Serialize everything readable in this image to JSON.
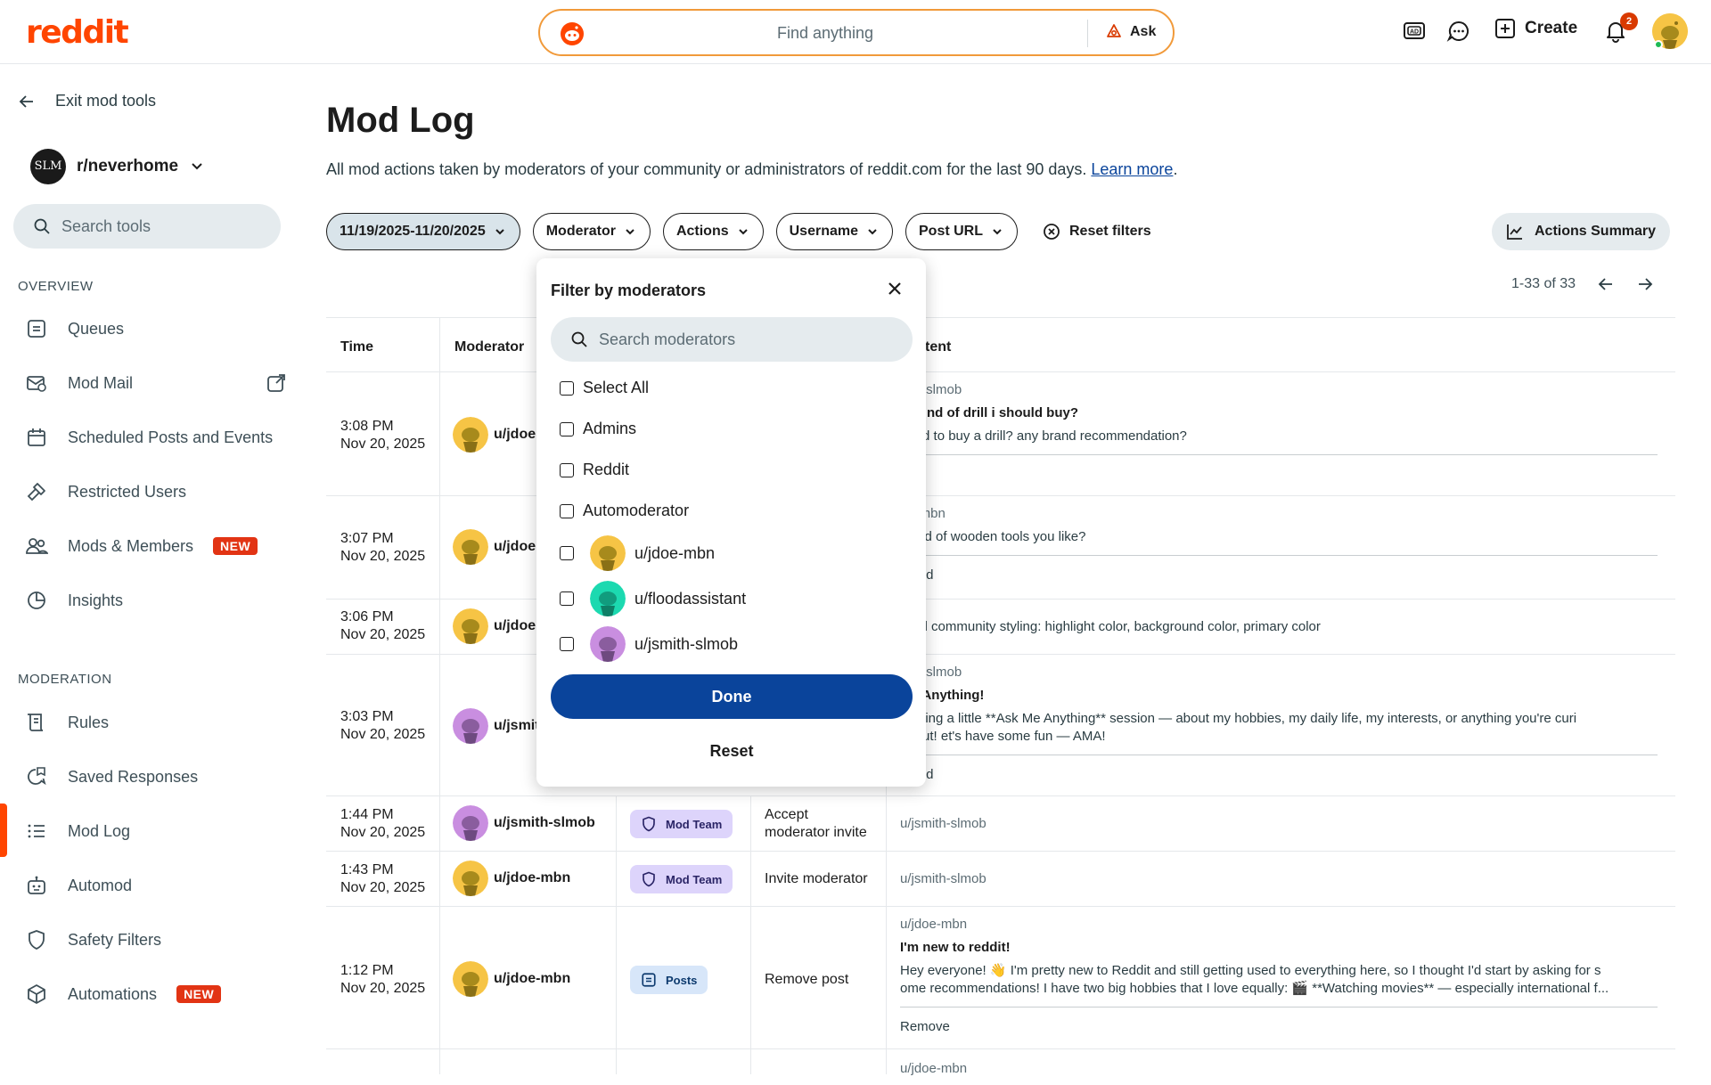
{
  "header": {
    "logo": "reddit",
    "search_placeholder": "Find anything",
    "ask_label": "Ask",
    "create_label": "Create",
    "notification_count": "2"
  },
  "sidebar": {
    "exit_label": "Exit mod tools",
    "community_name": "r/neverhome",
    "community_icon_text": "SLM",
    "search_placeholder": "Search tools",
    "overview_label": "OVERVIEW",
    "moderation_label": "MODERATION",
    "overview_items": [
      {
        "label": "Queues",
        "icon": "queues-icon"
      },
      {
        "label": "Mod Mail",
        "icon": "mod-mail-icon"
      },
      {
        "label": "Scheduled Posts and Events",
        "icon": "calendar-icon"
      },
      {
        "label": "Restricted Users",
        "icon": "hammer-icon"
      },
      {
        "label": "Mods & Members",
        "icon": "members-icon",
        "badge": "NEW"
      },
      {
        "label": "Insights",
        "icon": "insights-icon"
      }
    ],
    "moderation_items": [
      {
        "label": "Rules",
        "icon": "rules-icon"
      },
      {
        "label": "Saved Responses",
        "icon": "saved-responses-icon"
      },
      {
        "label": "Mod Log",
        "icon": "mod-log-icon",
        "active": true
      },
      {
        "label": "Automod",
        "icon": "automod-icon"
      },
      {
        "label": "Safety Filters",
        "icon": "shield-icon"
      },
      {
        "label": "Automations",
        "icon": "automations-icon",
        "badge": "NEW"
      }
    ],
    "active_color": "#ff4500"
  },
  "main": {
    "title": "Mod Log",
    "description": "All mod actions taken by moderators of your community or administrators of reddit.com for the last 90 days.",
    "learn_more": "Learn more",
    "filters": {
      "date_range": "11/19/2025-11/20/2025",
      "moderator": "Moderator",
      "actions": "Actions",
      "username": "Username",
      "post_url": "Post URL",
      "reset": "Reset filters"
    },
    "summary_label": "Actions Summary",
    "pagination": "1-33 of 33",
    "columns": {
      "time": "Time",
      "moderator": "Moderator",
      "content": "tent"
    },
    "rows": [
      {
        "time": "3:08 PM",
        "date": "Nov 20, 2025",
        "mod": "u/jdoe",
        "av": "yellow",
        "c_user": "nith-slmob",
        "c_title": "at kind of drill i should buy?",
        "c_body": "need to buy a drill? any brand recommendation?",
        "c_foot": "m"
      },
      {
        "time": "3:07 PM",
        "date": "Nov 20, 2025",
        "mod": "u/jdoe",
        "av": "yellow",
        "c_user": "pe-mbn",
        "c_title": "t kind of wooden tools you like?",
        "c_foot": "roved"
      },
      {
        "time": "3:06 PM",
        "date": "Nov 20, 2025",
        "mod": "u/jdoe",
        "av": "yellow",
        "c_body": "lified community styling: highlight color, background color, primary color"
      },
      {
        "time": "3:03 PM",
        "date": "Nov 20, 2025",
        "mod": "u/jsmit",
        "av": "purple",
        "c_user": "nith-slmob",
        "c_title": " Me Anything!",
        "c_body": "nosting a little **Ask Me Anything** session — about my hobbies, my daily life, my interests, or anything you're curi",
        "c_body2": "about! et's have some fun — AMA!",
        "c_foot": "roved"
      },
      {
        "time": "1:44 PM",
        "date": "Nov 20, 2025",
        "mod": "u/jsmith-slmob",
        "av": "purple",
        "tag": "Mod Team",
        "action": "Accept",
        "action2": "moderator invite",
        "c_user": "u/jsmith-slmob"
      },
      {
        "time": "1:43 PM",
        "date": "Nov 20, 2025",
        "mod": "u/jdoe-mbn",
        "av": "yellow",
        "tag": "Mod Team",
        "action": "Invite moderator",
        "c_user": "u/jsmith-slmob"
      },
      {
        "time": "1:12 PM",
        "date": "Nov 20, 2025",
        "mod": "u/jdoe-mbn",
        "av": "yellow",
        "tag": "Posts",
        "action": "Remove post",
        "c_user": "u/jdoe-mbn",
        "c_title": "I'm new to reddit!",
        "c_body": "Hey everyone! 👋 I'm pretty new to Reddit and still getting used to everything here, so I thought I'd start by asking for s",
        "c_body2": "ome recommendations! I have two big hobbies that I love equally: 🎬 **Watching movies** — especially international f...",
        "c_foot": "Remove"
      },
      {
        "c_user": "u/jdoe-mbn"
      }
    ]
  },
  "dropdown": {
    "title": "Filter by moderators",
    "search_placeholder": "Search moderators",
    "options": [
      "Select All",
      "Admins",
      "Reddit",
      "Automoderator"
    ],
    "moderators": [
      {
        "name": "u/jdoe-mbn",
        "color": "#f6c445"
      },
      {
        "name": "u/floodassistant",
        "color": "#1cd9b0"
      },
      {
        "name": "u/jsmith-slmob",
        "color": "#c98ee0"
      }
    ],
    "done_label": "Done",
    "reset_label": "Reset",
    "done_color": "#0a449b"
  }
}
